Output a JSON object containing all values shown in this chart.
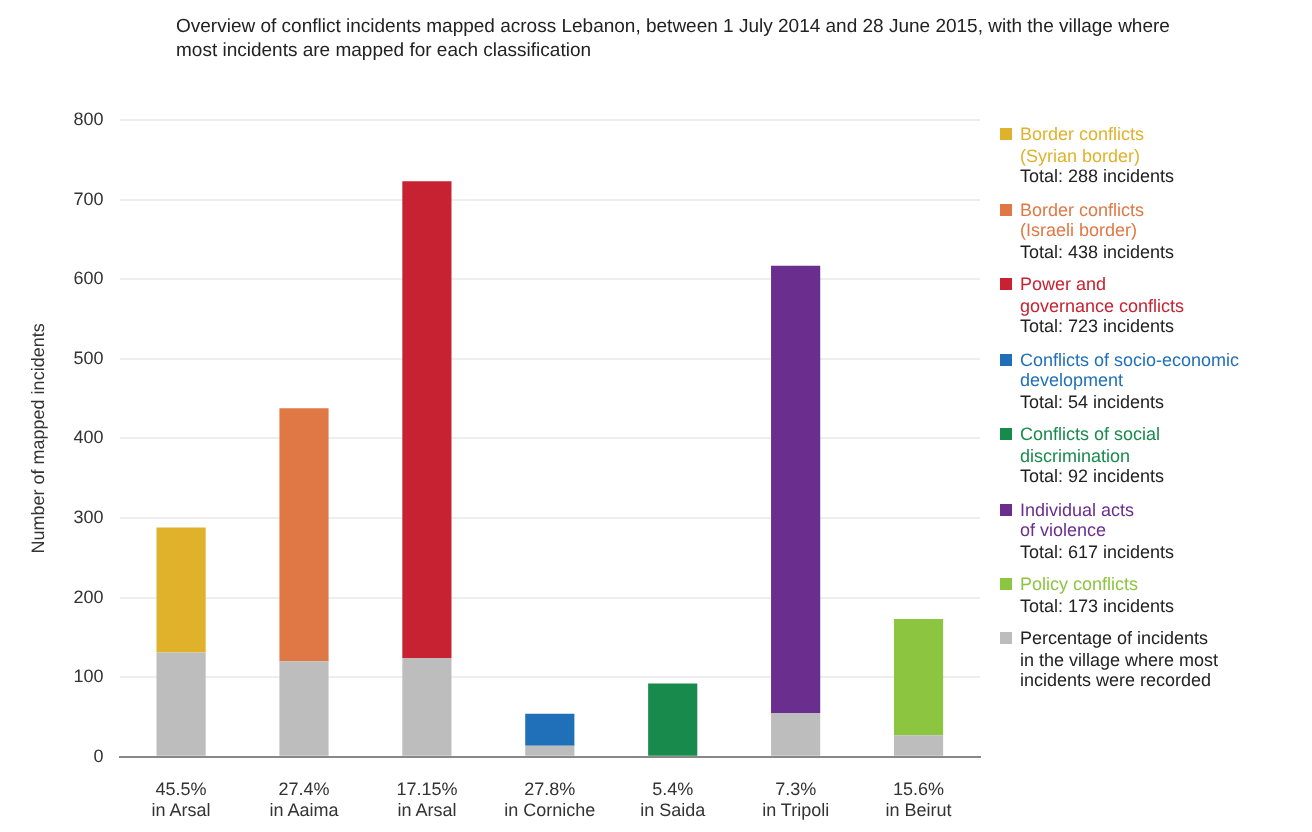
{
  "chart_data": {
    "type": "bar",
    "stacked": true,
    "title": "Overview of conflict incidents mapped across Lebanon, between 1 July 2014 and 28 June 2015, with the village where most incidents are mapped for each classification",
    "ylabel": "Number of mapped incidents",
    "categories": [
      "45.5%\nin Arsal",
      "27.4%\nin Aaima",
      "17.15%\nin Arsal",
      "27.8%\nin Corniche",
      "5.4%\nin Saida",
      "7.3%\nin Tripoli",
      "15.6%\nin Beirut"
    ],
    "series": [
      {
        "name": "Percentage of incidents\nin the village where most\nincidents were recorded",
        "color": "#bdbdbd",
        "values": [
          131,
          120,
          124,
          14,
          null,
          55,
          27
        ]
      },
      {
        "name": "Border conflicts\n(Syrian border)\nTotal: 288 incidents",
        "color": "#e0b22c",
        "values": [
          157,
          null,
          null,
          null,
          null,
          null,
          null
        ]
      },
      {
        "name": "Border conflicts\n(Israeli border)\nTotal: 438 incidents",
        "color": "#df7845",
        "values": [
          null,
          318,
          null,
          null,
          null,
          null,
          null
        ]
      },
      {
        "name": "Power and\ngovernance conflicts\nTotal: 723 incidents",
        "color": "#c62232",
        "values": [
          null,
          null,
          599,
          null,
          null,
          null,
          null
        ]
      },
      {
        "name": "Conflicts of socio-economic\ndevelopment\nTotal: 54 incidents",
        "color": "#1f70b8",
        "values": [
          null,
          null,
          null,
          40,
          null,
          null,
          null
        ]
      },
      {
        "name": "Conflicts of social\ndiscrimination\nTotal: 92 incidents",
        "color": "#188a4c",
        "values": [
          null,
          null,
          null,
          null,
          92,
          null,
          null
        ]
      },
      {
        "name": "Individual acts\nof violence\nTotal: 617 incidents",
        "color": "#6a2e8e",
        "values": [
          null,
          null,
          null,
          null,
          null,
          562,
          null
        ]
      },
      {
        "name": "Policy conflicts\nTotal: 173 incidents",
        "color": "#8cc540",
        "values": [
          null,
          null,
          null,
          null,
          null,
          null,
          146
        ]
      }
    ],
    "ylim": [
      0,
      800
    ],
    "yticks": [
      0,
      100,
      200,
      300,
      400,
      500,
      600,
      700,
      800
    ],
    "grid": "y",
    "legend": "right"
  }
}
